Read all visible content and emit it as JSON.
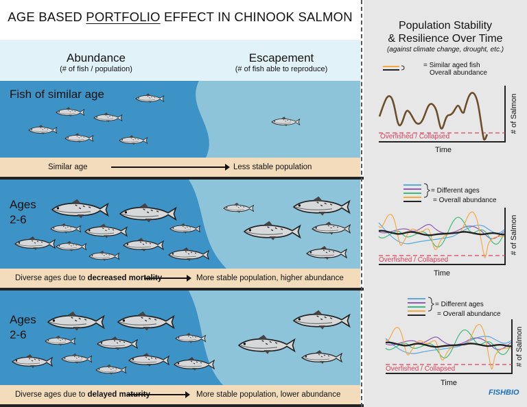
{
  "title": {
    "pre": "AGE BASED ",
    "underlined": "PORTFOLIO",
    "post": " EFFECT IN CHINOOK SALMON"
  },
  "columns": {
    "abundance": "Abundance",
    "abundance_sub": "(# of fish / population)",
    "escapement": "Escapement",
    "escapement_sub": "(# of fish able to reproduce)"
  },
  "rows": [
    {
      "label": "Fish of similar age",
      "left_caption": "Similar age",
      "right_caption": "Less stable population"
    },
    {
      "label": "Ages\n2-6",
      "left_caption_pre": "Diverse ages due to ",
      "left_caption_bold": "decreased mortality",
      "right_caption": "More stable population, higher abundance"
    },
    {
      "label": "Ages\n2-6",
      "left_caption_pre": "Diverse ages due to ",
      "left_caption_bold": "delayed maturity",
      "right_caption": "More stable population, lower abundance"
    }
  ],
  "right_panel": {
    "title_line1": "Population Stability",
    "title_line2": "& Resilience Over Time",
    "subtitle": "(against climate change, drought, etc.)",
    "legend1": {
      "similar": "Similar aged fish",
      "overall": "Overall abundance"
    },
    "legend2": {
      "different": "Different ages",
      "overall": "Overall abundance"
    },
    "threshold": "Overfished / Collapsed",
    "xlabel": "Time",
    "ylabel": "# of Salmon",
    "logo": "FISHBIO"
  },
  "colors": {
    "deep_water": "#3d93c6",
    "shallow_water": "#8dc4d9",
    "sky": "#e2f2f9",
    "sand": "#f3dcbc",
    "threshold": "#e0405a",
    "single_line": "#6b4e2a",
    "ages": [
      "#5aa7dc",
      "#8e5bb5",
      "#3dbb7a",
      "#f5a941"
    ],
    "overall": "#222222",
    "panel": "#e7e7e8"
  }
}
